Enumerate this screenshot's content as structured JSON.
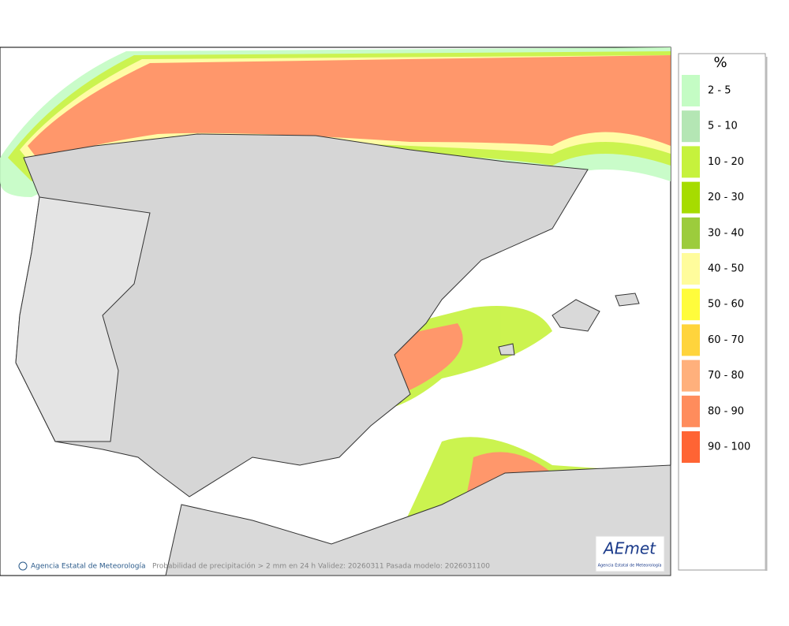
{
  "legend": {
    "title": "%",
    "items": [
      {
        "label": "2 - 5",
        "color": "#c4fcc4"
      },
      {
        "label": "5 - 10",
        "color": "#b4e6b4"
      },
      {
        "label": "10 - 20",
        "color": "#c6f23c"
      },
      {
        "label": "20 - 30",
        "color": "#a6dc00"
      },
      {
        "label": "30 - 40",
        "color": "#9ccc3c"
      },
      {
        "label": "40 - 50",
        "color": "#fffc9c"
      },
      {
        "label": "50 - 60",
        "color": "#fffc3c"
      },
      {
        "label": "60 - 70",
        "color": "#ffd43c"
      },
      {
        "label": "70 - 80",
        "color": "#ffb07c"
      },
      {
        "label": "80 - 90",
        "color": "#ff8c5c"
      },
      {
        "label": "90 - 100",
        "color": "#ff6434"
      }
    ]
  },
  "footer": {
    "credit": "Agencia Estatal de Meteorología",
    "caption": "Probabilidad de precipitación > 2 mm en 24 h  Validez: 20260311 Pasada modelo: 2026031100"
  },
  "logo": {
    "name": "AEmet",
    "subtitle": "Agencia Estatal de Meteorología"
  }
}
